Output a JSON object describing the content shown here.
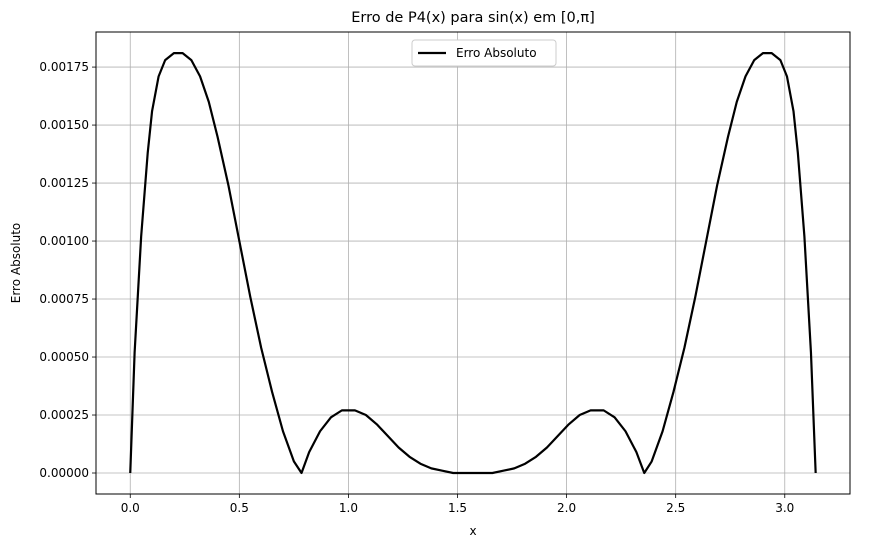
{
  "chart_data": {
    "type": "line",
    "title": "Erro de P4(x) para sin(x) em [0,π]",
    "xlabel": "x",
    "ylabel": "Erro Absoluto",
    "xlim": [
      -0.157,
      3.299
    ],
    "ylim": [
      -9.05e-05,
      0.0019012
    ],
    "xticks": [
      0.0,
      0.5,
      1.0,
      1.5,
      2.0,
      2.5,
      3.0
    ],
    "xtick_labels": [
      "0.0",
      "0.5",
      "1.0",
      "1.5",
      "2.0",
      "2.5",
      "3.0"
    ],
    "yticks": [
      0.0,
      0.00025,
      0.0005,
      0.00075,
      0.001,
      0.00125,
      0.0015,
      0.00175
    ],
    "ytick_labels": [
      "0.00000",
      "0.00025",
      "0.00050",
      "0.00075",
      "0.00100",
      "0.00125",
      "0.00150",
      "0.00175"
    ],
    "grid": true,
    "legend_position": "top-center",
    "series": [
      {
        "name": "Erro Absoluto",
        "color": "#000000",
        "x": [
          0.0,
          0.02,
          0.05,
          0.08,
          0.1,
          0.13,
          0.16,
          0.2,
          0.24,
          0.28,
          0.32,
          0.36,
          0.4,
          0.45,
          0.5,
          0.55,
          0.6,
          0.65,
          0.7,
          0.75,
          0.785,
          0.82,
          0.87,
          0.92,
          0.97,
          1.03,
          1.08,
          1.13,
          1.18,
          1.23,
          1.28,
          1.33,
          1.38,
          1.43,
          1.48,
          1.52,
          1.571,
          1.62,
          1.66,
          1.71,
          1.76,
          1.81,
          1.86,
          1.91,
          1.96,
          2.01,
          2.06,
          2.11,
          2.17,
          2.22,
          2.27,
          2.32,
          2.356,
          2.39,
          2.44,
          2.49,
          2.54,
          2.59,
          2.64,
          2.69,
          2.74,
          2.78,
          2.82,
          2.86,
          2.9,
          2.94,
          2.98,
          3.01,
          3.04,
          3.06,
          3.09,
          3.12,
          3.1416
        ],
        "y": [
          0.0,
          0.00052,
          0.00102,
          0.00138,
          0.00156,
          0.00171,
          0.00178,
          0.00181,
          0.00181,
          0.00178,
          0.00171,
          0.0016,
          0.00145,
          0.00124,
          0.001,
          0.00076,
          0.00054,
          0.00035,
          0.00018,
          5e-05,
          0.0,
          9e-05,
          0.00018,
          0.00024,
          0.00027,
          0.00027,
          0.00025,
          0.00021,
          0.00016,
          0.00011,
          7e-05,
          4e-05,
          2e-05,
          1e-05,
          0.0,
          0.0,
          0.0,
          0.0,
          0.0,
          1e-05,
          2e-05,
          4e-05,
          7e-05,
          0.00011,
          0.00016,
          0.00021,
          0.00025,
          0.00027,
          0.00027,
          0.00024,
          0.00018,
          9e-05,
          0.0,
          5e-05,
          0.00018,
          0.00035,
          0.00054,
          0.00076,
          0.001,
          0.00124,
          0.00145,
          0.0016,
          0.00171,
          0.00178,
          0.00181,
          0.00181,
          0.00178,
          0.00171,
          0.00156,
          0.00138,
          0.00102,
          0.00052,
          0.0
        ]
      }
    ]
  }
}
